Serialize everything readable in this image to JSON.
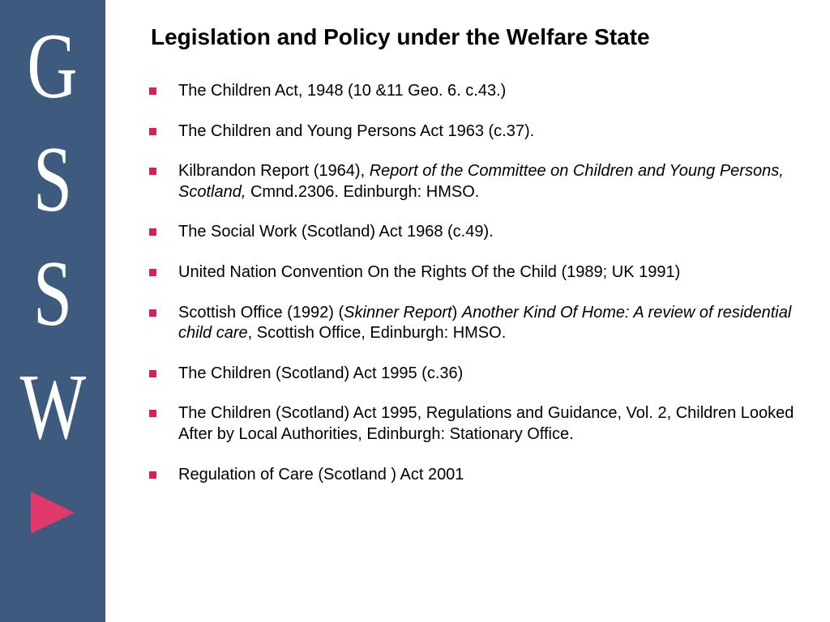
{
  "sidebar": {
    "letters": [
      "G",
      "S",
      "S",
      "W"
    ],
    "background_color": "#3e5a7e",
    "letter_color": "#ffffff",
    "arrow_color": "#e13a6a"
  },
  "title": "Legislation and Policy under the Welfare State",
  "bullet_color": "#d81e5b",
  "bullets": [
    {
      "parts": [
        {
          "text": "The Children Act, 1948 (10 &11 Geo. 6. c.43.)",
          "style": "normal"
        }
      ]
    },
    {
      "parts": [
        {
          "text": "The Children and Young Persons Act 1963 (c.37).",
          "style": "normal"
        }
      ]
    },
    {
      "parts": [
        {
          "text": "Kilbrandon Report (1964), ",
          "style": "normal"
        },
        {
          "text": "Report of the Committee on Children and Young Persons, Scotland, ",
          "style": "italic"
        },
        {
          "text": "Cmnd.2306. Edinburgh: HMSO.",
          "style": "normal"
        }
      ]
    },
    {
      "parts": [
        {
          "text": "The Social Work (Scotland) Act 1968 (c.49).",
          "style": "normal"
        }
      ]
    },
    {
      "parts": [
        {
          "text": "United Nation Convention On the Rights Of the Child (1989; UK 1991)",
          "style": "normal"
        }
      ]
    },
    {
      "parts": [
        {
          "text": "Scottish Office (1992) (",
          "style": "normal"
        },
        {
          "text": "Skinner Report",
          "style": "italic"
        },
        {
          "text": ") ",
          "style": "normal"
        },
        {
          "text": "Another Kind Of Home: A review of residential child care",
          "style": "italic"
        },
        {
          "text": ", Scottish Office, Edinburgh: HMSO.",
          "style": "normal"
        }
      ]
    },
    {
      "parts": [
        {
          "text": "The Children (Scotland) Act 1995 (c.36)",
          "style": "normal"
        }
      ]
    },
    {
      "parts": [
        {
          "text": "The Children (Scotland) Act 1995, Regulations and Guidance, Vol. 2, Children Looked After by Local Authorities, Edinburgh: Stationary Office.",
          "style": "normal"
        }
      ]
    },
    {
      "parts": [
        {
          "text": "Regulation of Care (Scotland ) Act 2001",
          "style": "normal"
        }
      ]
    }
  ]
}
